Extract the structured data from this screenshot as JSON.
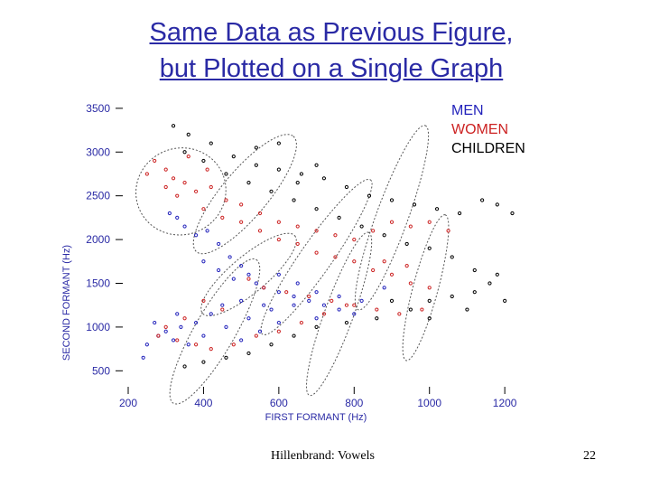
{
  "slide": {
    "title_line1": "Same Data as Previous Figure,",
    "title_line2": "but Plotted on a Single Graph",
    "footer_left": "Hillenbrand: Vowels",
    "page_number": "22"
  },
  "chart_data": {
    "type": "scatter",
    "xlabel": "FIRST FORMANT (Hz)",
    "ylabel": "SECOND FORMANT (Hz)",
    "xlim": [
      200,
      1250
    ],
    "ylim": [
      400,
      3550
    ],
    "x_ticks": [
      200,
      400,
      600,
      800,
      1000,
      1200
    ],
    "y_ticks": [
      500,
      1000,
      1500,
      2000,
      2500,
      3000,
      3500
    ],
    "grid": false,
    "legend_position": "top-right",
    "series": [
      {
        "name": "MEN",
        "color": "#2222bb",
        "points": [
          [
            310,
            2300
          ],
          [
            330,
            2250
          ],
          [
            350,
            2150
          ],
          [
            380,
            2050
          ],
          [
            410,
            2100
          ],
          [
            440,
            1950
          ],
          [
            470,
            1800
          ],
          [
            500,
            1700
          ],
          [
            520,
            1600
          ],
          [
            540,
            1500
          ],
          [
            560,
            1450
          ],
          [
            600,
            1400
          ],
          [
            640,
            1350
          ],
          [
            680,
            1300
          ],
          [
            720,
            1250
          ],
          [
            760,
            1200
          ],
          [
            800,
            1150
          ],
          [
            560,
            1250
          ],
          [
            500,
            1300
          ],
          [
            450,
            1250
          ],
          [
            420,
            1150
          ],
          [
            380,
            1050
          ],
          [
            340,
            1000
          ],
          [
            300,
            950
          ],
          [
            280,
            900
          ],
          [
            320,
            850
          ],
          [
            360,
            800
          ],
          [
            400,
            900
          ],
          [
            460,
            1000
          ],
          [
            520,
            1100
          ],
          [
            580,
            1200
          ],
          [
            640,
            1250
          ],
          [
            700,
            1400
          ],
          [
            760,
            1350
          ],
          [
            820,
            1300
          ],
          [
            880,
            1450
          ],
          [
            480,
            1550
          ],
          [
            440,
            1650
          ],
          [
            400,
            1750
          ],
          [
            600,
            1600
          ],
          [
            650,
            1500
          ],
          [
            330,
            1150
          ],
          [
            270,
            1050
          ],
          [
            250,
            800
          ],
          [
            240,
            650
          ],
          [
            600,
            1050
          ],
          [
            700,
            1100
          ],
          [
            550,
            950
          ],
          [
            500,
            850
          ]
        ]
      },
      {
        "name": "WOMEN",
        "color": "#cc2222",
        "points": [
          [
            270,
            2900
          ],
          [
            300,
            2800
          ],
          [
            320,
            2700
          ],
          [
            350,
            2650
          ],
          [
            380,
            2550
          ],
          [
            420,
            2600
          ],
          [
            460,
            2450
          ],
          [
            500,
            2400
          ],
          [
            550,
            2300
          ],
          [
            600,
            2200
          ],
          [
            650,
            2150
          ],
          [
            700,
            2100
          ],
          [
            750,
            2050
          ],
          [
            800,
            2000
          ],
          [
            850,
            2100
          ],
          [
            900,
            2200
          ],
          [
            950,
            2150
          ],
          [
            1000,
            2200
          ],
          [
            1050,
            2100
          ],
          [
            300,
            2600
          ],
          [
            330,
            2500
          ],
          [
            400,
            2350
          ],
          [
            450,
            2250
          ],
          [
            500,
            2200
          ],
          [
            550,
            2100
          ],
          [
            600,
            2000
          ],
          [
            650,
            1950
          ],
          [
            700,
            1850
          ],
          [
            750,
            1800
          ],
          [
            800,
            1750
          ],
          [
            850,
            1650
          ],
          [
            900,
            1600
          ],
          [
            950,
            1500
          ],
          [
            1000,
            1450
          ],
          [
            520,
            1550
          ],
          [
            560,
            1450
          ],
          [
            620,
            1400
          ],
          [
            680,
            1350
          ],
          [
            740,
            1300
          ],
          [
            800,
            1250
          ],
          [
            860,
            1200
          ],
          [
            920,
            1150
          ],
          [
            980,
            1200
          ],
          [
            400,
            1300
          ],
          [
            450,
            1200
          ],
          [
            350,
            1100
          ],
          [
            300,
            1000
          ],
          [
            280,
            900
          ],
          [
            330,
            850
          ],
          [
            380,
            800
          ],
          [
            420,
            750
          ],
          [
            480,
            800
          ],
          [
            540,
            900
          ],
          [
            600,
            950
          ],
          [
            660,
            1050
          ],
          [
            720,
            1150
          ],
          [
            780,
            1250
          ],
          [
            250,
            2750
          ],
          [
            360,
            2950
          ],
          [
            410,
            2800
          ],
          [
            880,
            1750
          ],
          [
            940,
            1700
          ]
        ]
      },
      {
        "name": "CHILDREN",
        "color": "#000000",
        "points": [
          [
            320,
            3300
          ],
          [
            360,
            3200
          ],
          [
            420,
            3100
          ],
          [
            480,
            2950
          ],
          [
            540,
            2850
          ],
          [
            600,
            2800
          ],
          [
            660,
            2750
          ],
          [
            720,
            2700
          ],
          [
            780,
            2600
          ],
          [
            840,
            2500
          ],
          [
            900,
            2450
          ],
          [
            960,
            2400
          ],
          [
            1020,
            2350
          ],
          [
            1080,
            2300
          ],
          [
            1140,
            2450
          ],
          [
            1180,
            2400
          ],
          [
            1220,
            2300
          ],
          [
            350,
            3000
          ],
          [
            400,
            2900
          ],
          [
            460,
            2750
          ],
          [
            520,
            2650
          ],
          [
            580,
            2550
          ],
          [
            640,
            2450
          ],
          [
            700,
            2350
          ],
          [
            760,
            2250
          ],
          [
            820,
            2150
          ],
          [
            880,
            2050
          ],
          [
            940,
            1950
          ],
          [
            1000,
            1900
          ],
          [
            1060,
            1800
          ],
          [
            1120,
            1650
          ],
          [
            1180,
            1600
          ],
          [
            1000,
            1300
          ],
          [
            1060,
            1350
          ],
          [
            1120,
            1400
          ],
          [
            1200,
            1300
          ],
          [
            900,
            1300
          ],
          [
            950,
            1200
          ],
          [
            1000,
            1100
          ],
          [
            860,
            1100
          ],
          [
            780,
            1050
          ],
          [
            700,
            1000
          ],
          [
            640,
            900
          ],
          [
            580,
            800
          ],
          [
            520,
            700
          ],
          [
            460,
            650
          ],
          [
            400,
            600
          ],
          [
            350,
            550
          ],
          [
            600,
            3100
          ],
          [
            540,
            3050
          ],
          [
            700,
            2850
          ],
          [
            650,
            2650
          ],
          [
            1100,
            1200
          ],
          [
            1160,
            1500
          ]
        ]
      }
    ],
    "ellipses": [
      {
        "cx": 340,
        "cy": 2550,
        "rx": 120,
        "ry": 900,
        "rotate_deg": 20
      },
      {
        "cx": 510,
        "cy": 2520,
        "rx": 200,
        "ry": 480,
        "rotate_deg": 50
      },
      {
        "cx": 900,
        "cy": 2250,
        "rx": 260,
        "ry": 330,
        "rotate_deg": 70
      },
      {
        "cx": 700,
        "cy": 1800,
        "rx": 250,
        "ry": 330,
        "rotate_deg": 55
      },
      {
        "cx": 520,
        "cy": 1600,
        "rx": 160,
        "ry": 380,
        "rotate_deg": 40
      },
      {
        "cx": 990,
        "cy": 1450,
        "rx": 200,
        "ry": 260,
        "rotate_deg": 75
      },
      {
        "cx": 760,
        "cy": 1150,
        "rx": 230,
        "ry": 300,
        "rotate_deg": 70
      },
      {
        "cx": 430,
        "cy": 950,
        "rx": 220,
        "ry": 420,
        "rotate_deg": 60
      }
    ]
  }
}
